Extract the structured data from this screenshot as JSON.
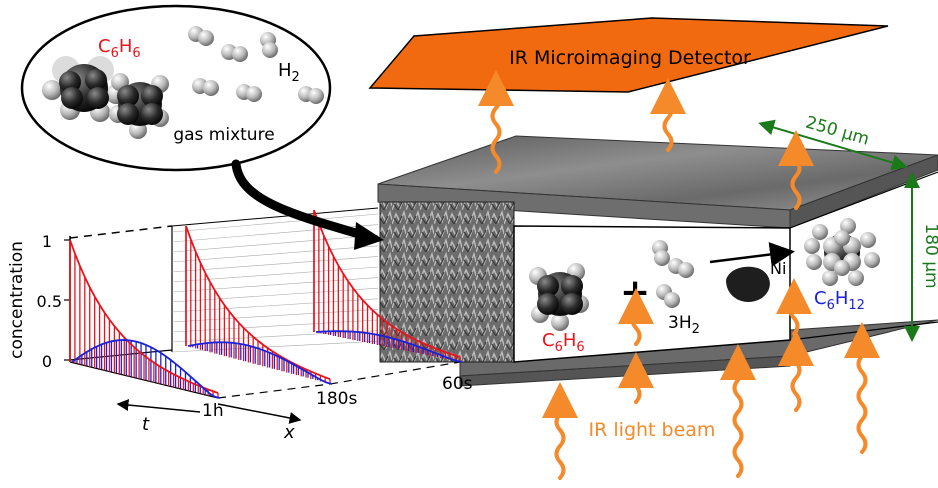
{
  "detector": {
    "label": "IR Microimaging Detector",
    "color": "#f26a10"
  },
  "bubble": {
    "benzene_label": "C",
    "benzene_sub": "6",
    "benzene_label2": "H",
    "benzene_sub2": "6",
    "hydrogen_label": "H",
    "hydrogen_sub": "2",
    "caption": "gas mixture"
  },
  "reaction": {
    "reactant1": "C",
    "reactant1_sub": "6",
    "reactant1_b": "H",
    "reactant1_sub_b": "6",
    "plus": "+",
    "reactant2_coef": "3H",
    "reactant2_sub": "2",
    "catalyst": "Ni",
    "product": "C",
    "product_sub": "6",
    "product_b": "H",
    "product_sub_b": "12"
  },
  "dimensions": {
    "width": "250 µm",
    "height": "180 µm",
    "color": "#1a7a1a"
  },
  "beam": {
    "label": "IR light beam",
    "color": "#f58a2a"
  },
  "plot": {
    "ylabel": "concentration",
    "yticks": [
      "1",
      "0.5",
      "0"
    ],
    "t_axis": "t",
    "x_axis": "x",
    "time_labels": [
      "1h",
      "180s",
      "60s"
    ]
  },
  "colors": {
    "benzene": "#e8141c",
    "cyclohexane": "#1a22d8",
    "orange": "#f58a2a",
    "green": "#1a7a1a"
  }
}
